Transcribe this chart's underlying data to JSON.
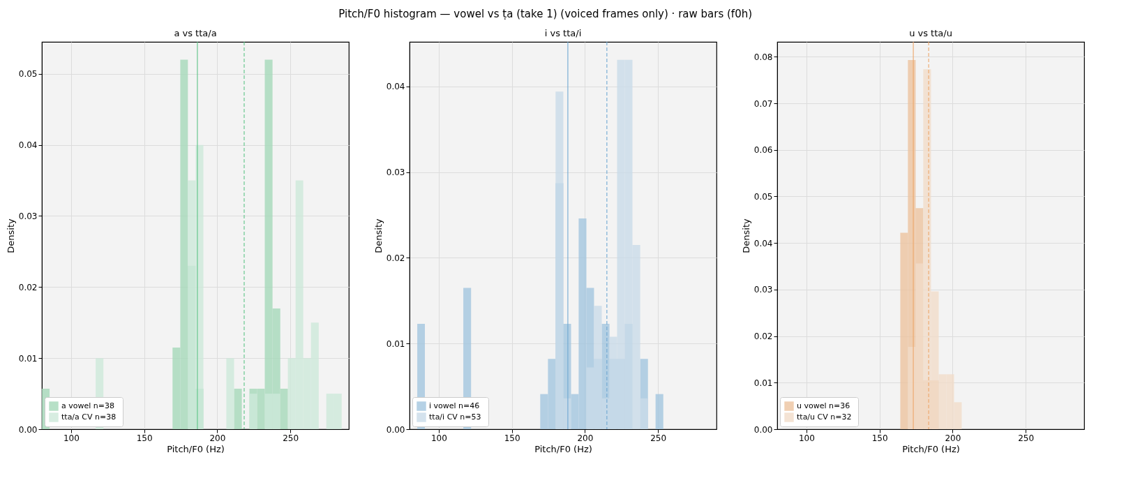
{
  "chart_data": [
    {
      "type": "histogram",
      "title": "a vs tta/a",
      "xlabel": "Pitch/F0 (Hz)",
      "ylabel": "Density",
      "annotations": [
        "Pitch/F0 histogram — vowel vs ṭa (take 1) (voiced frames only) · raw bars (f0h)"
      ],
      "bins": [
        80,
        85.3,
        90.5,
        95.8,
        101,
        106.3,
        111.6,
        116.8,
        122.1,
        127.3,
        132.6,
        137.9,
        143.1,
        148.4,
        153.6,
        158.9,
        164.2,
        169.4,
        174.7,
        179.9,
        185.2,
        190.5,
        195.7,
        201,
        206.2,
        211.5,
        216.8,
        222,
        227.3,
        232.5,
        237.8,
        243.1,
        248.3,
        253.6,
        258.8,
        264.1,
        269.4,
        274.6,
        279.9,
        285.1
      ],
      "series": [
        {
          "name": "a vowel  n=38",
          "color": "#a5d8b9",
          "values": [
            0.0057,
            0,
            0,
            0,
            0,
            0,
            0,
            0,
            0,
            0,
            0,
            0,
            0,
            0,
            0,
            0,
            0,
            0.0115,
            0.052,
            0.023,
            0.0057,
            0,
            0,
            0,
            0,
            0.0057,
            0,
            0.0057,
            0.0057,
            0.052,
            0.017,
            0.0057,
            0,
            0,
            0,
            0,
            0,
            0,
            0
          ]
        },
        {
          "name": "tta/a CV  n=38",
          "color": "#cde8d9",
          "values": [
            0,
            0,
            0,
            0,
            0,
            0,
            0,
            0.01,
            0,
            0,
            0,
            0,
            0,
            0,
            0,
            0,
            0,
            0,
            0,
            0.035,
            0.04,
            0,
            0,
            0,
            0.01,
            0,
            0,
            0.005,
            0,
            0.005,
            0.005,
            0,
            0.01,
            0.035,
            0.01,
            0.015,
            0,
            0.005,
            0.005
          ]
        }
      ],
      "xlim": [
        80,
        290
      ],
      "xticks": [
        100,
        150,
        200,
        250
      ],
      "ylim": [
        0,
        0.0545
      ],
      "yticks": [
        {
          "value": 0,
          "label": "0.00"
        },
        {
          "value": 0.01,
          "label": "0.01"
        },
        {
          "value": 0.02,
          "label": "0.02"
        },
        {
          "value": 0.03,
          "label": "0.03"
        },
        {
          "value": 0.04,
          "label": "0.04"
        },
        {
          "value": 0.05,
          "label": "0.05"
        }
      ],
      "ref_lines": [
        {
          "axis": "x",
          "value": 186.4,
          "color": "#5cc486",
          "line_style": "solid"
        },
        {
          "axis": "x",
          "value": 218.4,
          "color": "#5cc486",
          "line_style": "dashed"
        }
      ],
      "grid": true,
      "legend": "bottom left"
    },
    {
      "type": "histogram",
      "title": "i vs tta/i",
      "xlabel": "Pitch/F0 (Hz)",
      "ylabel": "Density",
      "bins": [
        80,
        85.3,
        90.5,
        95.8,
        101,
        106.3,
        111.6,
        116.8,
        122.1,
        127.3,
        132.6,
        137.9,
        143.1,
        148.4,
        153.6,
        158.9,
        164.2,
        169.4,
        174.7,
        179.9,
        185.2,
        190.5,
        195.7,
        201,
        206.2,
        211.5,
        216.8,
        222,
        227.3,
        232.5,
        237.8,
        243.1,
        248.3,
        253.6,
        258.8,
        264.1,
        269.4,
        274.6,
        279.9,
        285.1
      ],
      "series": [
        {
          "name": "i vowel  n=46",
          "color": "#a3c6df",
          "values": [
            0,
            0.0123,
            0,
            0,
            0,
            0,
            0,
            0.0165,
            0,
            0,
            0,
            0,
            0,
            0,
            0,
            0,
            0,
            0.0041,
            0.0082,
            0.0287,
            0.0123,
            0.0041,
            0.0246,
            0.0165,
            0.0082,
            0.0123,
            0.0082,
            0.0082,
            0.0123,
            0,
            0.0082,
            0,
            0.0041,
            0,
            0,
            0,
            0,
            0,
            0
          ]
        },
        {
          "name": "tta/i CV  n=53",
          "color": "#c9dbe9",
          "values": [
            0,
            0,
            0,
            0,
            0,
            0,
            0,
            0,
            0,
            0,
            0,
            0,
            0,
            0,
            0,
            0,
            0,
            0,
            0,
            0.0394,
            0.0036,
            0,
            0,
            0.0072,
            0.0144,
            0.0036,
            0.0108,
            0.0431,
            0.0431,
            0.0215,
            0.0036,
            0,
            0,
            0,
            0,
            0,
            0,
            0,
            0
          ]
        }
      ],
      "xlim": [
        80,
        290
      ],
      "xticks": [
        100,
        150,
        200,
        250
      ],
      "ylim": [
        0,
        0.0452
      ],
      "yticks": [
        {
          "value": 0,
          "label": "0.00"
        },
        {
          "value": 0.01,
          "label": "0.01"
        },
        {
          "value": 0.02,
          "label": "0.02"
        },
        {
          "value": 0.03,
          "label": "0.03"
        },
        {
          "value": 0.04,
          "label": "0.04"
        }
      ],
      "ref_lines": [
        {
          "axis": "x",
          "value": 188.3,
          "color": "#6fa8d2",
          "line_style": "solid"
        },
        {
          "axis": "x",
          "value": 215,
          "color": "#6fa8d2",
          "line_style": "dashed"
        }
      ],
      "grid": true,
      "legend": "bottom left"
    },
    {
      "type": "histogram",
      "title": "u vs tta/u",
      "xlabel": "Pitch/F0 (Hz)",
      "ylabel": "Density",
      "bins": [
        80,
        85.3,
        90.5,
        95.8,
        101,
        106.3,
        111.6,
        116.8,
        122.1,
        127.3,
        132.6,
        137.9,
        143.1,
        148.4,
        153.6,
        158.9,
        164.2,
        169.4,
        174.7,
        179.9,
        185.2,
        190.5,
        195.7,
        201,
        206.2,
        211.5,
        216.8,
        222,
        227.3,
        232.5,
        237.8,
        243.1,
        248.3,
        253.6,
        258.8,
        264.1,
        269.4,
        274.6,
        279.9,
        285.1
      ],
      "series": [
        {
          "name": "u vowel  n=36",
          "color": "#ecc39f",
          "values": [
            0,
            0,
            0,
            0,
            0,
            0,
            0,
            0,
            0,
            0,
            0,
            0,
            0,
            0,
            0,
            0,
            0.0422,
            0.0793,
            0.0475,
            0.0105,
            0.0105,
            0,
            0,
            0,
            0,
            0,
            0,
            0,
            0,
            0,
            0,
            0,
            0,
            0,
            0,
            0,
            0,
            0,
            0
          ]
        },
        {
          "name": "tta/u CV  n=32",
          "color": "#f1dcc9",
          "values": [
            0,
            0,
            0,
            0,
            0,
            0,
            0,
            0,
            0,
            0,
            0,
            0,
            0,
            0,
            0,
            0,
            0,
            0.0177,
            0.0356,
            0.0773,
            0.0296,
            0.0118,
            0.0118,
            0.0058,
            0,
            0,
            0,
            0,
            0,
            0,
            0,
            0,
            0,
            0,
            0,
            0,
            0,
            0,
            0
          ]
        }
      ],
      "xlim": [
        80,
        290
      ],
      "xticks": [
        100,
        150,
        200,
        250
      ],
      "ylim": [
        0,
        0.0832
      ],
      "yticks": [
        {
          "value": 0,
          "label": "0.00"
        },
        {
          "value": 0.01,
          "label": "0.01"
        },
        {
          "value": 0.02,
          "label": "0.02"
        },
        {
          "value": 0.03,
          "label": "0.03"
        },
        {
          "value": 0.04,
          "label": "0.04"
        },
        {
          "value": 0.05,
          "label": "0.05"
        },
        {
          "value": 0.06,
          "label": "0.06"
        },
        {
          "value": 0.07,
          "label": "0.07"
        },
        {
          "value": 0.08,
          "label": "0.08"
        }
      ],
      "ref_lines": [
        {
          "axis": "x",
          "value": 173.1,
          "color": "#eda66a",
          "line_style": "solid"
        },
        {
          "axis": "x",
          "value": 183.6,
          "color": "#eda66a",
          "line_style": "dashed"
        }
      ],
      "grid": true,
      "legend": "bottom left"
    }
  ]
}
